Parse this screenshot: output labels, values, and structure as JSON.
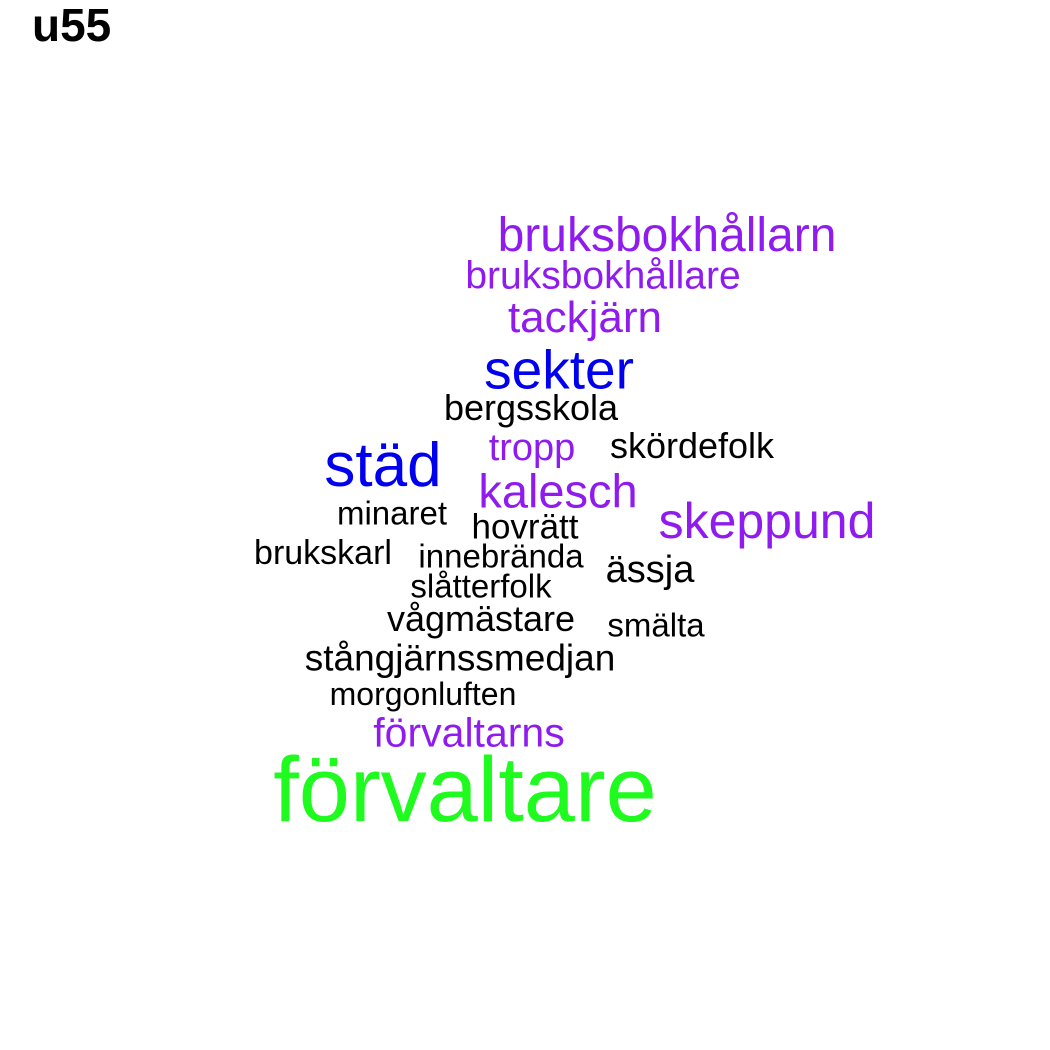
{
  "title": "u55",
  "colors": {
    "green": "#1ffb1f",
    "blue": "#0000ee",
    "purple": "#8f1bee",
    "black": "#000000"
  },
  "words": [
    {
      "text": "bruksbokhållarn",
      "color": "#8f1bee"
    },
    {
      "text": "bruksbokhållare",
      "color": "#8f1bee"
    },
    {
      "text": "tackjärn",
      "color": "#8f1bee"
    },
    {
      "text": "sekter",
      "color": "#0000ee"
    },
    {
      "text": "bergsskola",
      "color": "#000000"
    },
    {
      "text": "tropp",
      "color": "#8f1bee"
    },
    {
      "text": "skördefolk",
      "color": "#000000"
    },
    {
      "text": "städ",
      "color": "#0000ee"
    },
    {
      "text": "kalesch",
      "color": "#8f1bee"
    },
    {
      "text": "minaret",
      "color": "#000000"
    },
    {
      "text": "hovrätt",
      "color": "#000000"
    },
    {
      "text": "skeppund",
      "color": "#8f1bee"
    },
    {
      "text": "brukskarl",
      "color": "#000000"
    },
    {
      "text": "innebrända",
      "color": "#000000"
    },
    {
      "text": "ässja",
      "color": "#000000"
    },
    {
      "text": "slåtterfolk",
      "color": "#000000"
    },
    {
      "text": "vågmästare",
      "color": "#000000"
    },
    {
      "text": "smälta",
      "color": "#000000"
    },
    {
      "text": "stångjärnssmedjan",
      "color": "#000000"
    },
    {
      "text": "morgonluften",
      "color": "#000000"
    },
    {
      "text": "förvaltarns",
      "color": "#8f1bee"
    },
    {
      "text": "förvaltare",
      "color": "#1ffb1f"
    }
  ]
}
